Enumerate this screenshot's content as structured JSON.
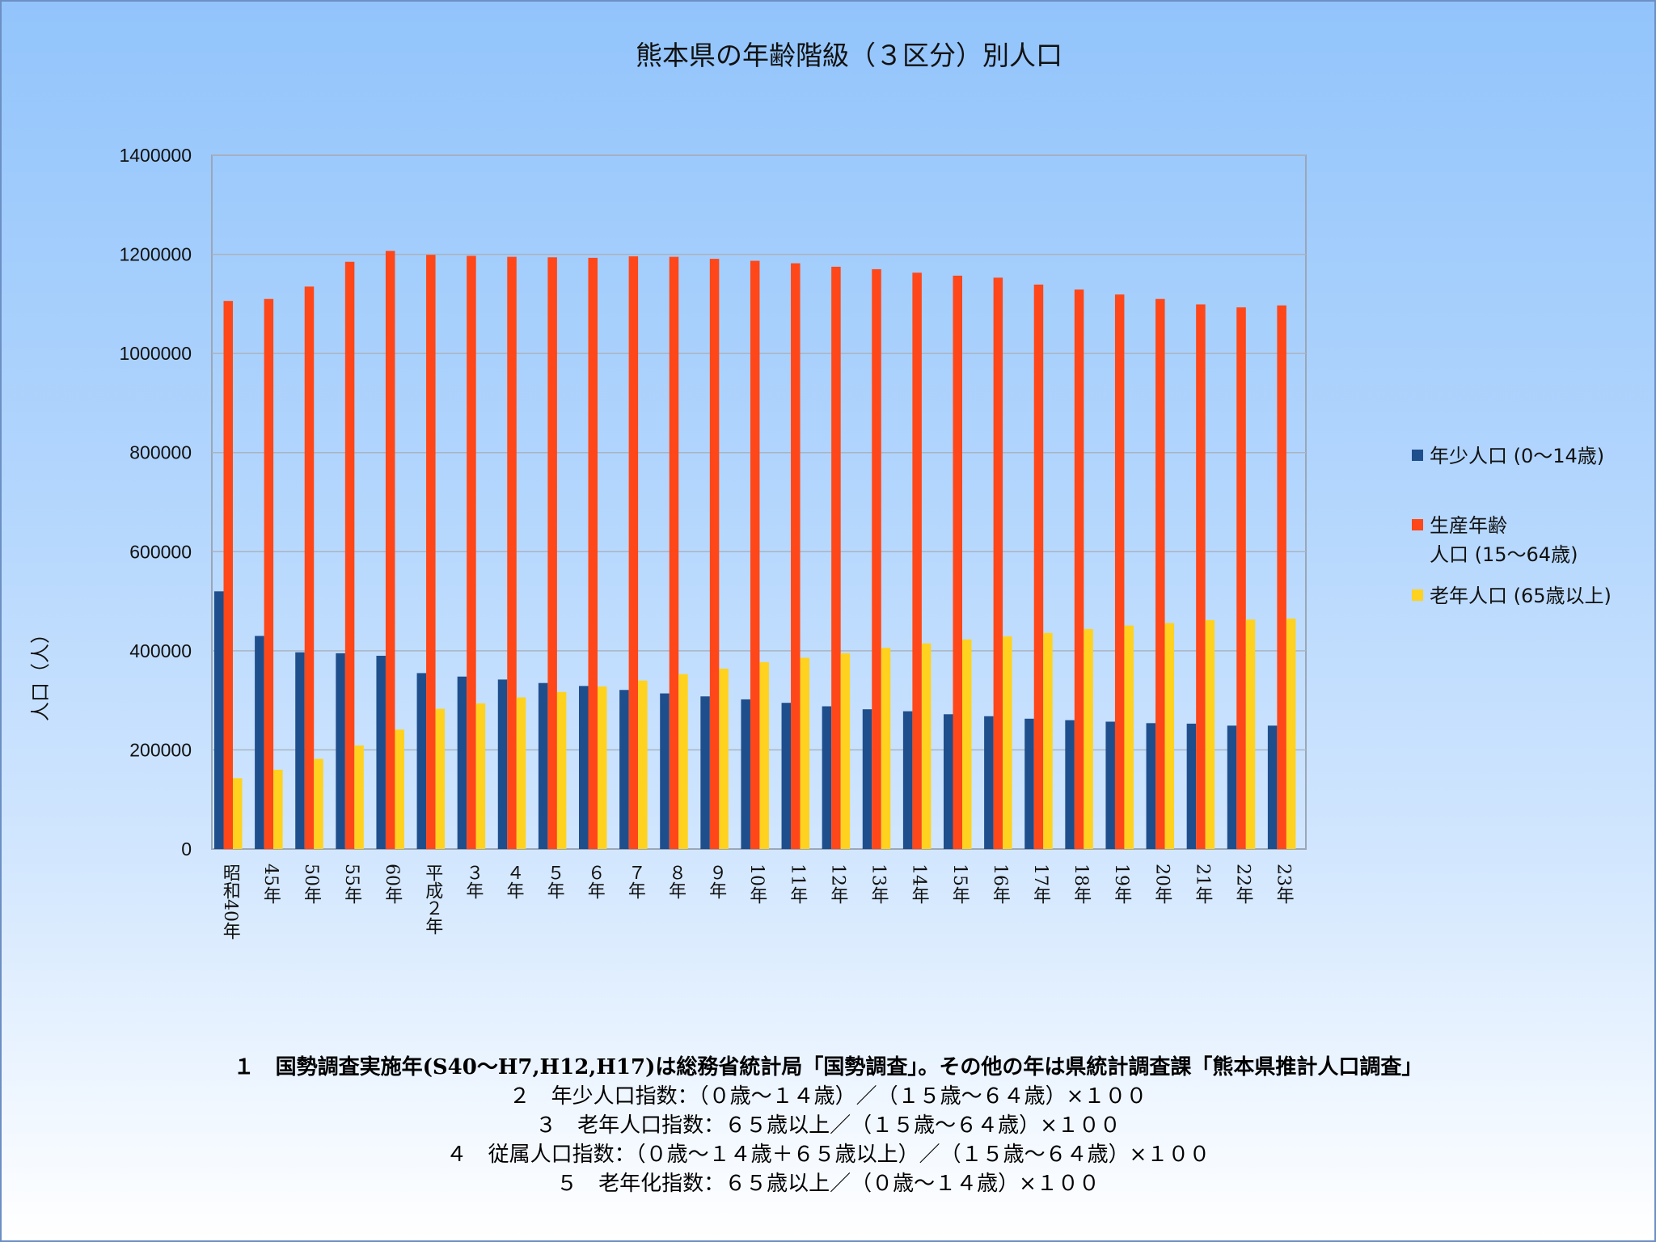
{
  "chart_data": {
    "type": "bar",
    "title": "熊本県の年齢階級（３区分）別人口",
    "ylabel": "人口（人）",
    "xlabel": "",
    "ylim": [
      0,
      1400000
    ],
    "yticks": [
      "1400000",
      "1200000",
      "1000000",
      "800000",
      "600000",
      "400000",
      "200000",
      "0"
    ],
    "grid": true,
    "legend_position": "right",
    "categories": [
      "昭和40年",
      "45年",
      "50年",
      "55年",
      "60年",
      "平成２年",
      "３年",
      "４年",
      "５年",
      "６年",
      "７年",
      "８年",
      "９年",
      "10年",
      "11年",
      "12年",
      "13年",
      "14年",
      "15年",
      "16年",
      "17年",
      "18年",
      "19年",
      "20年",
      "21年",
      "22年",
      "23年"
    ],
    "series": [
      {
        "name": "年少人口 (0～14歳)",
        "legend_lines": [
          "年少人口 (0～14歳)"
        ],
        "color": "#1f4e8c",
        "values": [
          520000,
          430000,
          397000,
          395000,
          390000,
          355000,
          348000,
          342000,
          335000,
          329000,
          321000,
          314000,
          308000,
          302000,
          295000,
          288000,
          282000,
          278000,
          272000,
          268000,
          263000,
          260000,
          257000,
          254000,
          253000,
          249000,
          249000
        ]
      },
      {
        "name": "生産年齢人口 (15～64歳)",
        "legend_lines": [
          "生産年齢",
          "人口 (15～64歳)"
        ],
        "color": "#ff4719",
        "values": [
          1106000,
          1110000,
          1135000,
          1185000,
          1207000,
          1199000,
          1197000,
          1195000,
          1194000,
          1193000,
          1196000,
          1195000,
          1191000,
          1187000,
          1182000,
          1175000,
          1170000,
          1163000,
          1157000,
          1153000,
          1139000,
          1129000,
          1119000,
          1110000,
          1099000,
          1093000,
          1097000
        ]
      },
      {
        "name": "老年人口 (65歳以上)",
        "legend_lines": [
          "老年人口 (65歳以上)"
        ],
        "color": "#ffd21f",
        "values": [
          143000,
          160000,
          182000,
          209000,
          241000,
          283000,
          294000,
          306000,
          317000,
          328000,
          340000,
          353000,
          364000,
          377000,
          386000,
          395000,
          406000,
          415000,
          423000,
          429000,
          436000,
          444000,
          451000,
          456000,
          462000,
          463000,
          465000
        ]
      }
    ]
  },
  "notes": [
    "１　国勢調査実施年(S40～H7,H12,H17)は総務省統計局「国勢調査」。その他の年は県統計調査課「熊本県推計人口調査」",
    "２　年少人口指数：（０歳～１４歳）／（１５歳～６４歳）×１００",
    "３　老年人口指数：６５歳以上／（１５歳～６４歳）×１００",
    "４　従属人口指数：（０歳～１４歳＋６５歳以上）／（１５歳～６４歳）×１００",
    "５　老年化指数：６５歳以上／（０歳～１４歳）×１００"
  ]
}
